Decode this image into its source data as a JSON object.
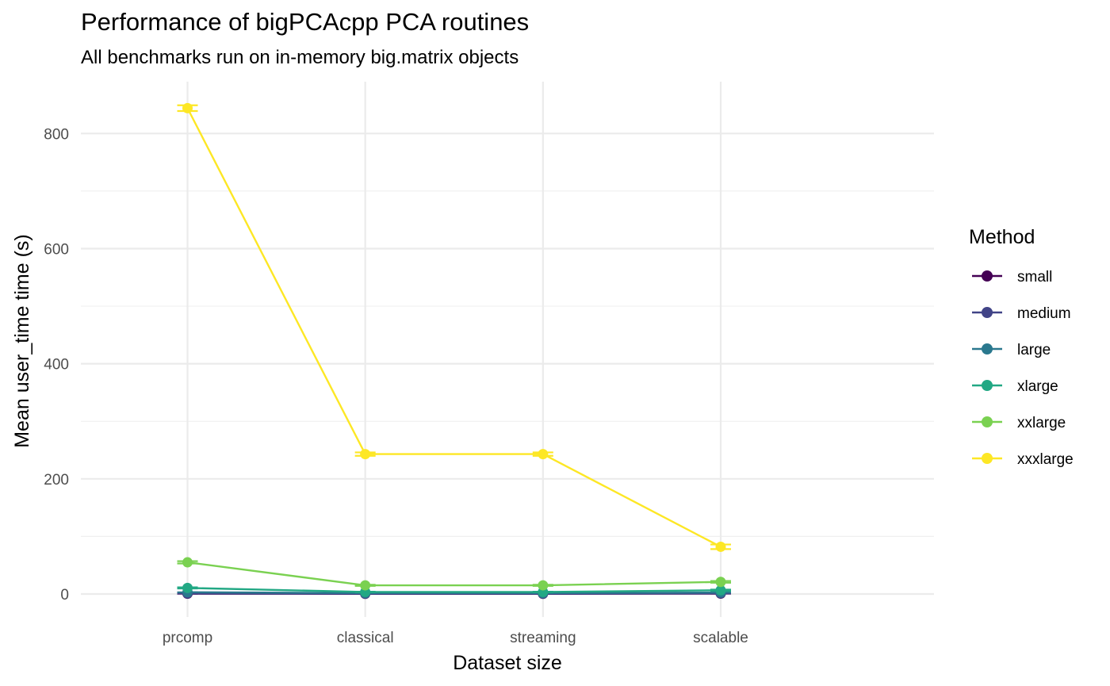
{
  "chart_data": {
    "type": "line",
    "title": "Performance of bigPCAcpp PCA routines",
    "subtitle": "All benchmarks run on in-memory big.matrix objects",
    "xlabel": "Dataset size",
    "ylabel": "Mean user_time time (s)",
    "categories": [
      "prcomp",
      "classical",
      "streaming",
      "scalable"
    ],
    "ylim": [
      -40,
      890
    ],
    "yticks": [
      0,
      200,
      400,
      600,
      800
    ],
    "grid": true,
    "legend": {
      "title": "Method",
      "position": "right"
    },
    "series": [
      {
        "name": "small",
        "color": "#440154",
        "values": [
          0.5,
          0.3,
          0.3,
          0.6
        ],
        "errors": [
          0,
          0,
          0,
          0
        ]
      },
      {
        "name": "medium",
        "color": "#414487",
        "values": [
          1.0,
          0.6,
          0.6,
          1.2
        ],
        "errors": [
          0,
          0,
          0,
          0
        ]
      },
      {
        "name": "large",
        "color": "#2A788E",
        "values": [
          3.0,
          1.5,
          1.5,
          2.5
        ],
        "errors": [
          0,
          0,
          0,
          0
        ]
      },
      {
        "name": "xlarge",
        "color": "#22A884",
        "values": [
          10.5,
          3.5,
          3.5,
          6.5
        ],
        "errors": [
          1,
          0.5,
          0.5,
          1
        ]
      },
      {
        "name": "xxlarge",
        "color": "#7AD151",
        "values": [
          55.0,
          15.0,
          15.0,
          21.0
        ],
        "errors": [
          2,
          1,
          1,
          1.5
        ]
      },
      {
        "name": "xxxlarge",
        "color": "#FDE725",
        "values": [
          844.0,
          243.0,
          243.0,
          82.0
        ],
        "errors": [
          5,
          3,
          3,
          4
        ]
      }
    ]
  }
}
